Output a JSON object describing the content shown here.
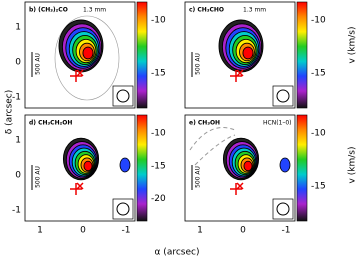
{
  "panels": [
    {
      "label": "b) (CH₃)₂CO",
      "band": "1.3 mm",
      "colorbar_ticks": [
        "-10",
        "-15"
      ]
    },
    {
      "label": "c) CH₃CHO",
      "band": "1.3 mm",
      "colorbar_ticks": [
        "-10",
        "-15"
      ]
    },
    {
      "label": "d) CH₃CH₂OH",
      "colorbar_ticks": [
        "-10",
        "-15",
        "-20"
      ]
    },
    {
      "label": "e) CH₃OH",
      "note": "HCN(1–0)",
      "colorbar_ticks": [
        "-10",
        "-15"
      ]
    }
  ],
  "scale_bar": "500 AU",
  "y_ticks": [
    "1",
    "0",
    "-1"
  ],
  "x_ticks": [
    "1",
    "0",
    "-1"
  ],
  "x_axis_label": "α (arcsec)",
  "y_axis_label": "δ (arcsec)",
  "colorbar_label": "v (km/s)"
}
